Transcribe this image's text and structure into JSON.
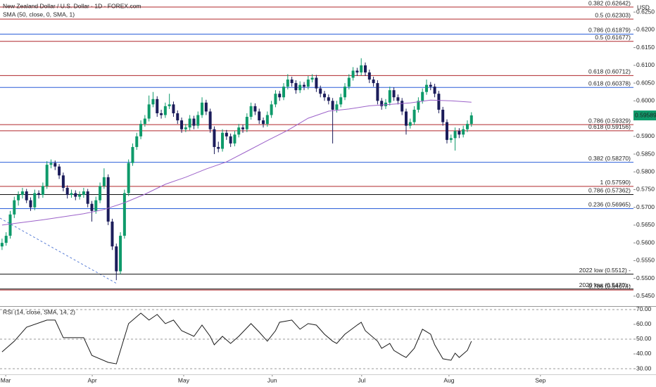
{
  "chart_data": {
    "type": "candlestick",
    "title": "New Zealand Dollar / U.S. Dollar · 1D · FOREX.com",
    "y_axis_unit": "USD",
    "up_color": "#0e9a6a",
    "down_color": "#1b1c5a",
    "xlim": [
      -0.5,
      154.7
    ],
    "xticks": [
      {
        "value": 0.9,
        "label": "Mar"
      },
      {
        "value": 22.1,
        "label": "Apr"
      },
      {
        "value": 44.5,
        "label": "May"
      },
      {
        "value": 66.2,
        "label": "Jun"
      },
      {
        "value": 88.1,
        "label": "Jul"
      },
      {
        "value": 109.5,
        "label": "Aug"
      },
      {
        "value": 131.9,
        "label": "Sep"
      }
    ],
    "ylim": [
      0.5422,
      0.6284
    ],
    "yticks": [
      {
        "value": 0.625,
        "label": "0.6250"
      },
      {
        "value": 0.62,
        "label": "0.6200"
      },
      {
        "value": 0.615,
        "label": "0.6150"
      },
      {
        "value": 0.61,
        "label": "0.6100"
      },
      {
        "value": 0.605,
        "label": "0.6050"
      },
      {
        "value": 0.6,
        "label": "0.6000"
      },
      {
        "value": 0.59,
        "label": "0.5900"
      },
      {
        "value": 0.585,
        "label": "0.5850"
      },
      {
        "value": 0.58,
        "label": "0.5800"
      },
      {
        "value": 0.575,
        "label": "0.5750"
      },
      {
        "value": 0.57,
        "label": "0.5700"
      },
      {
        "value": 0.565,
        "label": "0.5650"
      },
      {
        "value": 0.56,
        "label": "0.5600"
      },
      {
        "value": 0.555,
        "label": "0.5550"
      },
      {
        "value": 0.55,
        "label": "0.5500"
      },
      {
        "value": 0.545,
        "label": "0.5450"
      }
    ],
    "last_price": 0.59589,
    "ohlc": [
      [
        0.559,
        0.5612,
        0.558,
        0.56
      ],
      [
        0.56,
        0.563,
        0.5592,
        0.562
      ],
      [
        0.562,
        0.569,
        0.5612,
        0.568
      ],
      [
        0.568,
        0.573,
        0.567,
        0.572
      ],
      [
        0.572,
        0.5745,
        0.5705,
        0.5735
      ],
      [
        0.5735,
        0.5755,
        0.5725,
        0.5745
      ],
      [
        0.5745,
        0.5752,
        0.5712,
        0.572
      ],
      [
        0.572,
        0.5728,
        0.569,
        0.57
      ],
      [
        0.57,
        0.575,
        0.5692,
        0.574
      ],
      [
        0.574,
        0.5748,
        0.5725,
        0.5735
      ],
      [
        0.5735,
        0.577,
        0.5727,
        0.576
      ],
      [
        0.576,
        0.583,
        0.5752,
        0.582
      ],
      [
        0.582,
        0.5835,
        0.581,
        0.5825
      ],
      [
        0.5825,
        0.5832,
        0.5805,
        0.5815
      ],
      [
        0.5815,
        0.5822,
        0.578,
        0.579
      ],
      [
        0.579,
        0.5798,
        0.5745,
        0.5755
      ],
      [
        0.5755,
        0.5762,
        0.5725,
        0.5735
      ],
      [
        0.5735,
        0.575,
        0.5727,
        0.574
      ],
      [
        0.574,
        0.5748,
        0.572,
        0.573
      ],
      [
        0.573,
        0.5745,
        0.5722,
        0.5735
      ],
      [
        0.5735,
        0.5755,
        0.5727,
        0.5745
      ],
      [
        0.5745,
        0.5752,
        0.57,
        0.571
      ],
      [
        0.571,
        0.5718,
        0.566,
        0.569
      ],
      [
        0.569,
        0.573,
        0.5682,
        0.572
      ],
      [
        0.572,
        0.577,
        0.5712,
        0.576
      ],
      [
        0.576,
        0.581,
        0.5752,
        0.5785
      ],
      [
        0.5785,
        0.5793,
        0.565,
        0.566
      ],
      [
        0.566,
        0.5668,
        0.558,
        0.559
      ],
      [
        0.559,
        0.5598,
        0.5495,
        0.552
      ],
      [
        0.552,
        0.563,
        0.5512,
        0.562
      ],
      [
        0.562,
        0.575,
        0.5612,
        0.574
      ],
      [
        0.574,
        0.5835,
        0.5732,
        0.5825
      ],
      [
        0.5825,
        0.588,
        0.5817,
        0.587
      ],
      [
        0.587,
        0.591,
        0.5862,
        0.59
      ],
      [
        0.59,
        0.5945,
        0.5892,
        0.5935
      ],
      [
        0.5935,
        0.596,
        0.5927,
        0.595
      ],
      [
        0.595,
        0.6015,
        0.5942,
        0.599
      ],
      [
        0.599,
        0.6025,
        0.5982,
        0.6005
      ],
      [
        0.6005,
        0.6013,
        0.5955,
        0.5965
      ],
      [
        0.5965,
        0.5975,
        0.595,
        0.596
      ],
      [
        0.596,
        0.5995,
        0.5952,
        0.5985
      ],
      [
        0.5985,
        0.602,
        0.5977,
        0.599
      ],
      [
        0.599,
        0.5998,
        0.5955,
        0.5965
      ],
      [
        0.5965,
        0.5973,
        0.5935,
        0.5945
      ],
      [
        0.5945,
        0.5953,
        0.591,
        0.592
      ],
      [
        0.592,
        0.5935,
        0.5912,
        0.5925
      ],
      [
        0.5925,
        0.596,
        0.5917,
        0.595
      ],
      [
        0.595,
        0.5958,
        0.592,
        0.593
      ],
      [
        0.593,
        0.597,
        0.5922,
        0.596
      ],
      [
        0.596,
        0.601,
        0.5952,
        0.5995
      ],
      [
        0.5995,
        0.6003,
        0.596,
        0.597
      ],
      [
        0.597,
        0.5978,
        0.591,
        0.592
      ],
      [
        0.592,
        0.5928,
        0.585,
        0.587
      ],
      [
        0.587,
        0.5885,
        0.5855,
        0.5865
      ],
      [
        0.5865,
        0.592,
        0.5857,
        0.591
      ],
      [
        0.591,
        0.5918,
        0.589,
        0.59
      ],
      [
        0.59,
        0.5908,
        0.587,
        0.588
      ],
      [
        0.588,
        0.5915,
        0.5872,
        0.5905
      ],
      [
        0.5905,
        0.5935,
        0.5897,
        0.5925
      ],
      [
        0.5925,
        0.5933,
        0.591,
        0.592
      ],
      [
        0.592,
        0.5965,
        0.5912,
        0.5955
      ],
      [
        0.5955,
        0.5995,
        0.5947,
        0.5985
      ],
      [
        0.5985,
        0.5993,
        0.596,
        0.597
      ],
      [
        0.597,
        0.5978,
        0.5935,
        0.5945
      ],
      [
        0.5945,
        0.5953,
        0.5925,
        0.5935
      ],
      [
        0.5935,
        0.597,
        0.5927,
        0.596
      ],
      [
        0.596,
        0.6,
        0.5952,
        0.599
      ],
      [
        0.599,
        0.603,
        0.5982,
        0.602
      ],
      [
        0.602,
        0.6028,
        0.6,
        0.601
      ],
      [
        0.601,
        0.605,
        0.6002,
        0.604
      ],
      [
        0.604,
        0.6075,
        0.6032,
        0.606
      ],
      [
        0.606,
        0.6068,
        0.604,
        0.605
      ],
      [
        0.605,
        0.6058,
        0.602,
        0.603
      ],
      [
        0.603,
        0.6055,
        0.6022,
        0.6045
      ],
      [
        0.6045,
        0.6053,
        0.603,
        0.604
      ],
      [
        0.604,
        0.607,
        0.6032,
        0.606
      ],
      [
        0.606,
        0.6075,
        0.6052,
        0.6065
      ],
      [
        0.6065,
        0.6073,
        0.6025,
        0.6035
      ],
      [
        0.6035,
        0.6043,
        0.601,
        0.602
      ],
      [
        0.602,
        0.6028,
        0.6,
        0.601
      ],
      [
        0.601,
        0.6018,
        0.599,
        0.6
      ],
      [
        0.6,
        0.6008,
        0.588,
        0.5975
      ],
      [
        0.5975,
        0.6,
        0.5967,
        0.599
      ],
      [
        0.599,
        0.602,
        0.5982,
        0.601
      ],
      [
        0.601,
        0.605,
        0.6002,
        0.604
      ],
      [
        0.604,
        0.6075,
        0.6032,
        0.6065
      ],
      [
        0.6065,
        0.6095,
        0.6057,
        0.6085
      ],
      [
        0.6085,
        0.6093,
        0.607,
        0.608
      ],
      [
        0.608,
        0.612,
        0.6072,
        0.61
      ],
      [
        0.61,
        0.6108,
        0.607,
        0.608
      ],
      [
        0.608,
        0.6088,
        0.605,
        0.606
      ],
      [
        0.606,
        0.6068,
        0.604,
        0.605
      ],
      [
        0.605,
        0.6058,
        0.599,
        0.6
      ],
      [
        0.6,
        0.6008,
        0.5975,
        0.5985
      ],
      [
        0.5985,
        0.6005,
        0.5977,
        0.5995
      ],
      [
        0.5995,
        0.604,
        0.5987,
        0.603
      ],
      [
        0.603,
        0.6038,
        0.6,
        0.601
      ],
      [
        0.601,
        0.6018,
        0.599,
        0.6
      ],
      [
        0.6,
        0.6008,
        0.596,
        0.597
      ],
      [
        0.597,
        0.5978,
        0.5905,
        0.593
      ],
      [
        0.593,
        0.595,
        0.5922,
        0.594
      ],
      [
        0.594,
        0.5985,
        0.5932,
        0.5975
      ],
      [
        0.5975,
        0.601,
        0.5967,
        0.6
      ],
      [
        0.6,
        0.6035,
        0.5992,
        0.6025
      ],
      [
        0.6025,
        0.606,
        0.6017,
        0.6045
      ],
      [
        0.6045,
        0.6053,
        0.603,
        0.604
      ],
      [
        0.604,
        0.6048,
        0.601,
        0.602
      ],
      [
        0.602,
        0.6028,
        0.5965,
        0.5975
      ],
      [
        0.5975,
        0.5983,
        0.593,
        0.594
      ],
      [
        0.594,
        0.5948,
        0.588,
        0.589
      ],
      [
        0.589,
        0.5905,
        0.5882,
        0.5895
      ],
      [
        0.5895,
        0.5925,
        0.586,
        0.5915
      ],
      [
        0.5915,
        0.5923,
        0.5895,
        0.5905
      ],
      [
        0.5905,
        0.593,
        0.5897,
        0.592
      ],
      [
        0.592,
        0.5945,
        0.5912,
        0.5935
      ],
      [
        0.5935,
        0.5968,
        0.5927,
        0.5959
      ]
    ],
    "sma": {
      "name": "SMA (50, close, 0, SMA, 1)",
      "color": "#9c62c9",
      "x": [
        0,
        10,
        20,
        25,
        30,
        35,
        40,
        45,
        50,
        55,
        60,
        65,
        70,
        75,
        80,
        85,
        90,
        95,
        100,
        105,
        110,
        115
      ],
      "values": [
        0.565,
        0.5665,
        0.5682,
        0.5694,
        0.5713,
        0.5737,
        0.5765,
        0.5785,
        0.5808,
        0.5828,
        0.5858,
        0.5888,
        0.5917,
        0.5951,
        0.5971,
        0.5977,
        0.5986,
        0.599,
        0.5994,
        0.6002,
        0.6,
        0.5996
      ]
    },
    "levels": [
      {
        "label": "0.382 (0.62642)",
        "value": 0.62642,
        "color": "#b0272b"
      },
      {
        "label": "0.5 (0.62303)",
        "value": 0.62303,
        "color": "#b0272b"
      },
      {
        "label": "0.786 (0.61879)",
        "value": 0.61879,
        "color": "#2b5fd9"
      },
      {
        "label": "0.5 (0.61677)",
        "value": 0.61677,
        "color": "#b0272b"
      },
      {
        "label": "0.618 (0.60712)",
        "value": 0.60712,
        "color": "#b0272b"
      },
      {
        "label": "0.618 (0.60378)",
        "value": 0.60378,
        "color": "#2b5fd9"
      },
      {
        "label": "0.786 (0.59329)",
        "value": 0.59329,
        "color": "#b0272b"
      },
      {
        "label": "0.618 (0.59156)",
        "value": 0.59156,
        "color": "#b0272b"
      },
      {
        "label": "0.382 (0.58270)",
        "value": 0.5827,
        "color": "#2b5fd9"
      },
      {
        "label": "1 (0.57590)",
        "value": 0.5759,
        "color": "#b0272b"
      },
      {
        "label": "0.786 (0.57362)",
        "value": 0.57362,
        "color": "#111111"
      },
      {
        "label": "0.236 (0.56965)",
        "value": 0.56965,
        "color": "#2b5fd9"
      },
      {
        "label": "2022 low (0.5512) -",
        "value": 0.5512,
        "color": "#111111"
      },
      {
        "label": "2020 low (0.5470) -",
        "value": 0.547,
        "color": "#111111"
      },
      {
        "label": "0.786 (0.54674)",
        "value": 0.54674,
        "color": "#b0272b"
      }
    ],
    "rsi": {
      "name": "RSI (14, close, SMA, 14, 2)",
      "color": "#1a1a1a",
      "x": [
        0,
        3,
        6,
        11,
        13,
        15,
        20,
        22,
        26,
        28,
        31,
        34,
        36,
        38,
        40,
        42,
        44,
        47,
        49,
        51,
        52,
        54,
        56,
        58,
        61,
        63,
        65,
        67,
        68,
        71,
        73,
        75,
        77,
        79,
        81,
        82,
        84,
        87,
        88,
        89,
        92,
        93,
        95,
        96,
        98,
        99,
        101,
        103,
        105,
        106,
        108,
        110,
        111,
        112,
        114,
        115
      ],
      "values": [
        41.4,
        48.6,
        58.1,
        62.9,
        62.9,
        51.0,
        51.0,
        39.0,
        34.3,
        33.3,
        60.5,
        67.6,
        62.9,
        66.7,
        60.5,
        62.9,
        55.7,
        51.9,
        59.5,
        51.9,
        46.2,
        51.9,
        47.1,
        51.9,
        60.5,
        54.8,
        48.6,
        55.7,
        61.4,
        62.9,
        56.7,
        60.5,
        59.5,
        53.3,
        48.6,
        47.1,
        53.3,
        59.5,
        61.4,
        55.7,
        48.6,
        43.8,
        47.1,
        42.4,
        39.0,
        37.6,
        43.8,
        56.7,
        53.3,
        46.2,
        36.7,
        35.7,
        40.5,
        37.6,
        42.4,
        48.6
      ],
      "ylim": [
        26.2,
        71.4
      ],
      "yticks": [
        {
          "value": 70,
          "label": "70.00"
        },
        {
          "value": 60,
          "label": "60.00"
        },
        {
          "value": 50,
          "label": "50.00"
        },
        {
          "value": 40,
          "label": "40.00"
        },
        {
          "value": 30,
          "label": "30.00"
        }
      ],
      "bands": [
        70,
        50,
        30
      ]
    }
  }
}
